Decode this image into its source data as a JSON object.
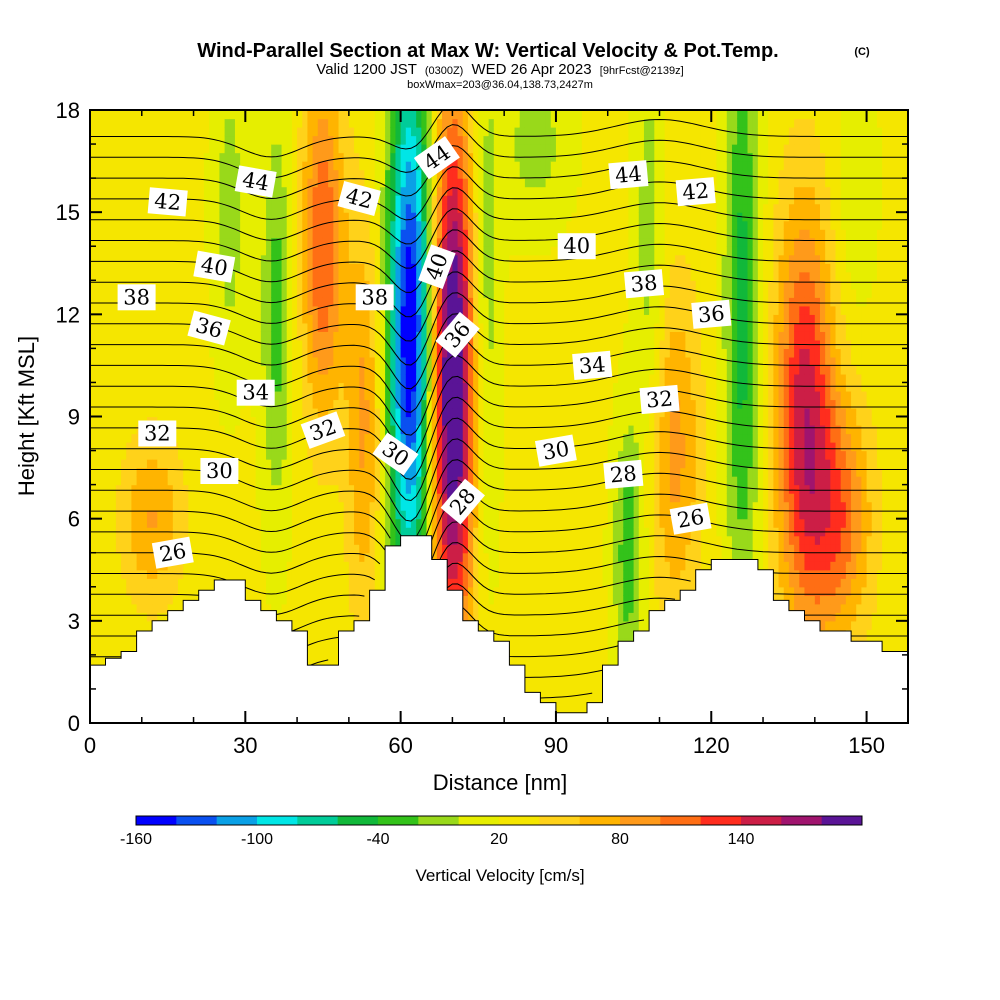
{
  "header": {
    "title_main": "Wind-Parallel Section at Max W: Vertical Velocity & Pot.Temp.",
    "title_mark": "(C)",
    "valid_prefix": "Valid 1200 JST",
    "valid_utc": "(0300Z)",
    "valid_date": "WED 26 Apr 2023",
    "forecast": "[9hrFcst@2139z]",
    "box_info": "boxWmax=203@36.04,138.73,2427m"
  },
  "colors": {
    "velocity_bins": [
      "#0000ff",
      "#0a50f0",
      "#0aa0e6",
      "#00e6e6",
      "#00cc99",
      "#11b83a",
      "#33c21a",
      "#99d91a",
      "#e6ee00",
      "#f5e600",
      "#ffd21a",
      "#ffb400",
      "#ff9a1a",
      "#ff6e14",
      "#ff2d1e",
      "#cc1e46",
      "#a0146e",
      "#5a1496"
    ],
    "terrain": "#ffffff",
    "contour_line": "#000000"
  },
  "chart_data": {
    "type": "heatmap",
    "xlabel": "Distance [nm]",
    "ylabel": "Height [Kft MSL]",
    "xlim": [
      0,
      158
    ],
    "ylim": [
      0,
      18
    ],
    "x_ticks": [
      0,
      30,
      60,
      90,
      120,
      150
    ],
    "x_tick_labels": [
      "0",
      "30",
      "60",
      "90",
      "120",
      "150"
    ],
    "y_ticks": [
      0,
      3,
      6,
      9,
      12,
      15,
      18
    ],
    "y_tick_labels": [
      "0",
      "3",
      "6",
      "9",
      "12",
      "15",
      "18"
    ],
    "colorbar": {
      "title": "Vertical Velocity [cm/s]",
      "min": -160,
      "max": 200,
      "step": 20,
      "labels": [
        "-160",
        "-100",
        "-40",
        "20",
        "80",
        "140"
      ],
      "label_values": [
        -160,
        -100,
        -40,
        20,
        80,
        140
      ]
    },
    "terrain_profile": [
      {
        "x": 0,
        "h": 1.7
      },
      {
        "x": 3,
        "h": 1.9
      },
      {
        "x": 6,
        "h": 2.1
      },
      {
        "x": 9,
        "h": 2.7
      },
      {
        "x": 12,
        "h": 3.0
      },
      {
        "x": 15,
        "h": 3.3
      },
      {
        "x": 18,
        "h": 3.6
      },
      {
        "x": 21,
        "h": 3.9
      },
      {
        "x": 24,
        "h": 4.2
      },
      {
        "x": 27,
        "h": 4.2
      },
      {
        "x": 30,
        "h": 3.6
      },
      {
        "x": 33,
        "h": 3.3
      },
      {
        "x": 36,
        "h": 3.0
      },
      {
        "x": 39,
        "h": 2.7
      },
      {
        "x": 42,
        "h": 1.7
      },
      {
        "x": 45,
        "h": 1.7
      },
      {
        "x": 48,
        "h": 2.7
      },
      {
        "x": 51,
        "h": 3.0
      },
      {
        "x": 54,
        "h": 3.9
      },
      {
        "x": 57,
        "h": 5.2
      },
      {
        "x": 60,
        "h": 5.5
      },
      {
        "x": 63,
        "h": 5.5
      },
      {
        "x": 66,
        "h": 4.8
      },
      {
        "x": 69,
        "h": 3.9
      },
      {
        "x": 72,
        "h": 3.0
      },
      {
        "x": 75,
        "h": 2.7
      },
      {
        "x": 78,
        "h": 2.4
      },
      {
        "x": 81,
        "h": 1.7
      },
      {
        "x": 84,
        "h": 0.9
      },
      {
        "x": 87,
        "h": 0.6
      },
      {
        "x": 90,
        "h": 0.3
      },
      {
        "x": 93,
        "h": 0.3
      },
      {
        "x": 96,
        "h": 0.6
      },
      {
        "x": 99,
        "h": 1.7
      },
      {
        "x": 102,
        "h": 2.4
      },
      {
        "x": 105,
        "h": 2.7
      },
      {
        "x": 108,
        "h": 3.3
      },
      {
        "x": 111,
        "h": 3.6
      },
      {
        "x": 114,
        "h": 3.9
      },
      {
        "x": 117,
        "h": 4.5
      },
      {
        "x": 120,
        "h": 4.8
      },
      {
        "x": 123,
        "h": 4.8
      },
      {
        "x": 126,
        "h": 4.8
      },
      {
        "x": 129,
        "h": 4.5
      },
      {
        "x": 132,
        "h": 3.6
      },
      {
        "x": 135,
        "h": 3.3
      },
      {
        "x": 138,
        "h": 3.0
      },
      {
        "x": 141,
        "h": 2.7
      },
      {
        "x": 144,
        "h": 2.7
      },
      {
        "x": 147,
        "h": 2.4
      },
      {
        "x": 150,
        "h": 2.4
      },
      {
        "x": 153,
        "h": 2.1
      },
      {
        "x": 156,
        "h": 2.1
      },
      {
        "x": 158,
        "h": 2.1
      }
    ],
    "vertical_velocity_features": [
      {
        "x": 62,
        "w": 4.5,
        "amp": -190,
        "z_center": 11.5,
        "z_width": 8.0
      },
      {
        "x": 70,
        "w": 4.5,
        "amp": 200,
        "z_center": 10.0,
        "z_width": 8.0
      },
      {
        "x": 45,
        "w": 4.0,
        "amp": 95,
        "z_center": 14.0,
        "z_width": 5.0
      },
      {
        "x": 53,
        "w": 3.5,
        "amp": 60,
        "z_center": 9.0,
        "z_width": 6.0
      },
      {
        "x": 36,
        "w": 3.0,
        "amp": -55,
        "z_center": 12.0,
        "z_width": 6.0
      },
      {
        "x": 27,
        "w": 3.5,
        "amp": -35,
        "z_center": 15.0,
        "z_width": 5.0
      },
      {
        "x": 76,
        "w": 3.0,
        "amp": -50,
        "z_center": 12.0,
        "z_width": 8.0
      },
      {
        "x": 86,
        "w": 7.0,
        "amp": -35,
        "z_center": 17.0,
        "z_width": 2.5
      },
      {
        "x": 104,
        "w": 3.0,
        "amp": -60,
        "z_center": 5.0,
        "z_width": 4.0
      },
      {
        "x": 108,
        "w": 3.0,
        "amp": -40,
        "z_center": 14.0,
        "z_width": 6.0
      },
      {
        "x": 113,
        "w": 5.0,
        "amp": 60,
        "z_center": 8.0,
        "z_width": 5.0
      },
      {
        "x": 126,
        "w": 3.5,
        "amp": -75,
        "z_center": 12.0,
        "z_width": 9.0
      },
      {
        "x": 138,
        "w": 5.5,
        "amp": 125,
        "z_center": 9.0,
        "z_width": 6.0
      },
      {
        "x": 145,
        "w": 6.0,
        "amp": 80,
        "z_center": 6.0,
        "z_width": 3.5
      },
      {
        "x": 12,
        "w": 6.0,
        "amp": 55,
        "z_center": 6.0,
        "z_width": 2.5
      },
      {
        "x": 148,
        "w": 4.0,
        "amp": -25,
        "z_center": 16.0,
        "z_width": 4.0
      }
    ],
    "background_velocity": 26,
    "potential_temperature": {
      "units": "C",
      "min": 18,
      "max": 46,
      "interval": 1,
      "labeled_contours": [
        {
          "value": "44",
          "x": 32,
          "y": 15.9,
          "angle": 10
        },
        {
          "value": "44",
          "x": 67,
          "y": 16.6,
          "angle": -35
        },
        {
          "value": "44",
          "x": 104,
          "y": 16.1,
          "angle": -5
        },
        {
          "value": "42",
          "x": 15,
          "y": 15.3,
          "angle": 5
        },
        {
          "value": "42",
          "x": 52,
          "y": 15.4,
          "angle": 15
        },
        {
          "value": "42",
          "x": 117,
          "y": 15.6,
          "angle": -5
        },
        {
          "value": "40",
          "x": 24,
          "y": 13.4,
          "angle": 10
        },
        {
          "value": "40",
          "x": 67,
          "y": 13.4,
          "angle": -70
        },
        {
          "value": "40",
          "x": 94,
          "y": 14.0,
          "angle": 0
        },
        {
          "value": "38",
          "x": 9,
          "y": 12.5,
          "angle": 0
        },
        {
          "value": "38",
          "x": 55,
          "y": 12.5,
          "angle": 0
        },
        {
          "value": "38",
          "x": 107,
          "y": 12.9,
          "angle": -5
        },
        {
          "value": "36",
          "x": 23,
          "y": 11.6,
          "angle": 15
        },
        {
          "value": "36",
          "x": 71,
          "y": 11.4,
          "angle": -50
        },
        {
          "value": "36",
          "x": 120,
          "y": 12.0,
          "angle": -5
        },
        {
          "value": "34",
          "x": 32,
          "y": 9.7,
          "angle": 0
        },
        {
          "value": "34",
          "x": 97,
          "y": 10.5,
          "angle": -5
        },
        {
          "value": "32",
          "x": 13,
          "y": 8.5,
          "angle": 0
        },
        {
          "value": "32",
          "x": 45,
          "y": 8.6,
          "angle": -20
        },
        {
          "value": "32",
          "x": 110,
          "y": 9.5,
          "angle": -5
        },
        {
          "value": "30",
          "x": 25,
          "y": 7.4,
          "angle": 0
        },
        {
          "value": "30",
          "x": 59,
          "y": 7.9,
          "angle": 35
        },
        {
          "value": "30",
          "x": 90,
          "y": 8.0,
          "angle": -10
        },
        {
          "value": "28",
          "x": 72,
          "y": 6.5,
          "angle": -50
        },
        {
          "value": "28",
          "x": 103,
          "y": 7.3,
          "angle": -5
        },
        {
          "value": "26",
          "x": 16,
          "y": 5.0,
          "angle": -10
        },
        {
          "value": "26",
          "x": 116,
          "y": 6.0,
          "angle": -10
        }
      ]
    }
  }
}
